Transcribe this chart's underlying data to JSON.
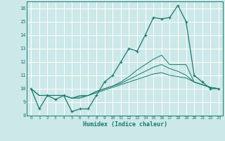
{
  "xlabel": "Humidex (Indice chaleur)",
  "xlim": [
    -0.5,
    23.5
  ],
  "ylim": [
    8,
    16.5
  ],
  "xticks": [
    0,
    1,
    2,
    3,
    4,
    5,
    6,
    7,
    8,
    9,
    10,
    11,
    12,
    13,
    14,
    15,
    16,
    17,
    18,
    19,
    20,
    21,
    22,
    23
  ],
  "yticks": [
    8,
    9,
    10,
    11,
    12,
    13,
    14,
    15,
    16
  ],
  "bg_color": "#cce8e8",
  "line_color": "#1a7a6e",
  "grid_color": "#ffffff",
  "line_main": [
    10.0,
    8.5,
    9.5,
    9.2,
    9.5,
    8.3,
    8.5,
    8.5,
    9.5,
    10.5,
    11.0,
    12.0,
    13.0,
    12.8,
    14.0,
    15.3,
    15.2,
    15.3,
    16.2,
    15.0,
    11.0,
    10.5,
    10.0,
    10.0
  ],
  "line2": [
    10.0,
    9.5,
    9.5,
    9.5,
    9.5,
    9.3,
    9.5,
    9.5,
    9.8,
    10.0,
    10.2,
    10.5,
    10.9,
    11.4,
    11.8,
    12.2,
    12.5,
    11.8,
    11.8,
    11.8,
    10.5,
    10.3,
    10.1,
    10.0
  ],
  "line3": [
    10.0,
    9.5,
    9.5,
    9.5,
    9.5,
    9.3,
    9.4,
    9.5,
    9.8,
    10.0,
    10.2,
    10.4,
    10.7,
    11.0,
    11.3,
    11.6,
    11.8,
    11.5,
    11.3,
    11.0,
    10.5,
    10.3,
    10.1,
    10.0
  ],
  "line4": [
    10.0,
    9.5,
    9.5,
    9.5,
    9.5,
    9.3,
    9.3,
    9.5,
    9.7,
    9.9,
    10.1,
    10.3,
    10.5,
    10.7,
    10.9,
    11.1,
    11.2,
    11.0,
    10.9,
    10.8,
    10.5,
    10.3,
    10.1,
    10.0
  ]
}
